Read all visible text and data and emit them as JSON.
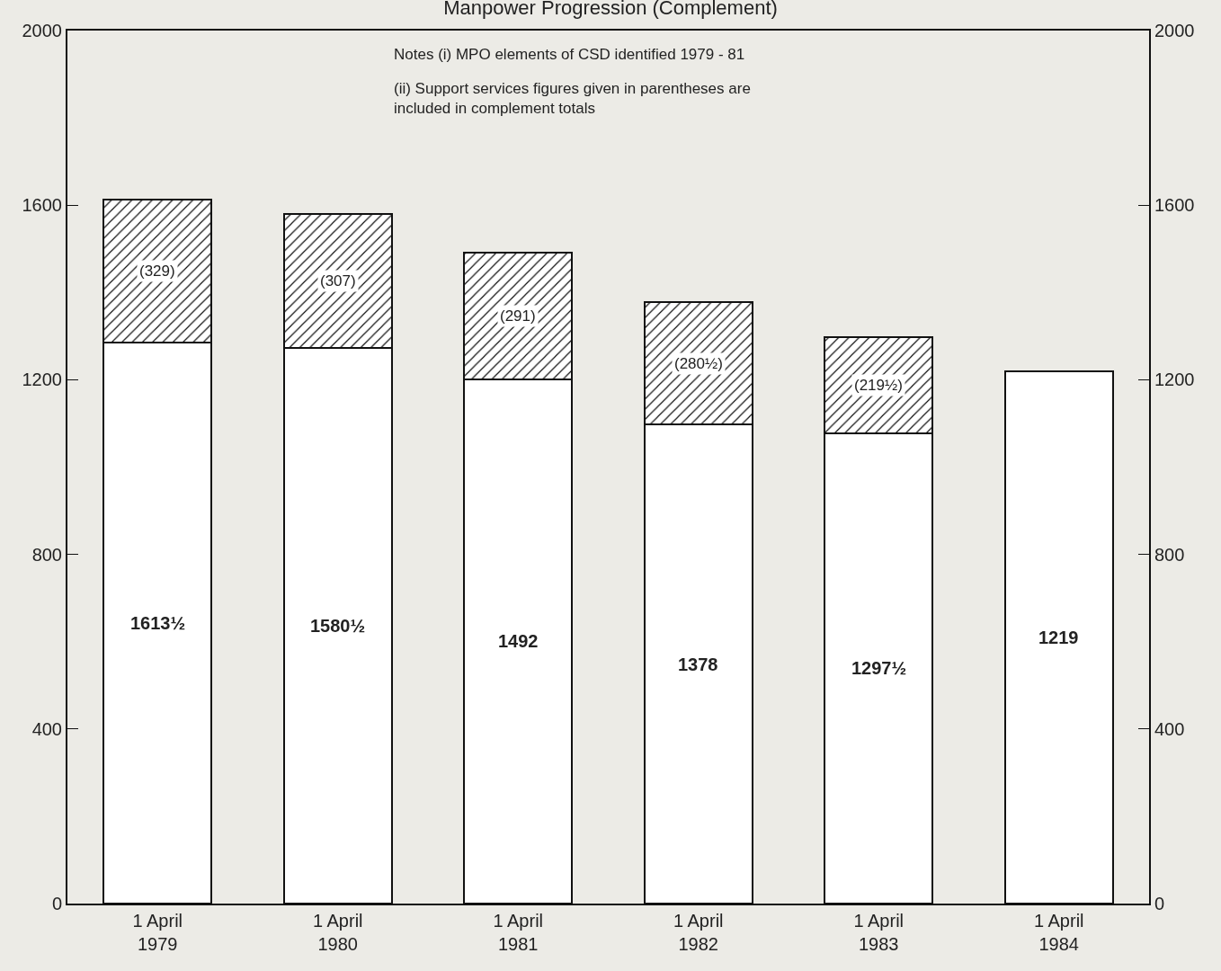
{
  "chart_data": {
    "type": "bar",
    "title": "Manpower Progression (Complement)",
    "categories": [
      "1 April 1979",
      "1 April 1980",
      "1 April 1981",
      "1 April 1982",
      "1 April 1983",
      "1 April 1984"
    ],
    "stacked": true,
    "series": [
      {
        "color": "#ffffff",
        "values": [
          1284.5,
          1273.5,
          1201,
          1097.5,
          1078,
          1219
        ]
      },
      {
        "color": "#111111",
        "values": [
          329,
          307,
          291,
          280.5,
          219.5,
          null
        ],
        "value_labels": [
          "(329)",
          "(307)",
          "(291)",
          "(280½)",
          "(219½)",
          null
        ]
      }
    ],
    "totals": [
      "1613½",
      "1580½",
      "1492",
      "1378",
      "1297½",
      "1219"
    ],
    "ylim": [
      0,
      2000
    ],
    "yticks": [
      0,
      400,
      800,
      1200,
      1600,
      2000
    ],
    "y2lim": [
      0,
      2000
    ],
    "y2ticks": [
      0,
      400,
      800,
      1200,
      1600,
      2000
    ],
    "grid": false,
    "annotations": [
      "Notes (i) MPO elements of CSD identified 1979 - 81",
      "(ii) Support services figures given in parentheses are included in complement totals"
    ]
  }
}
